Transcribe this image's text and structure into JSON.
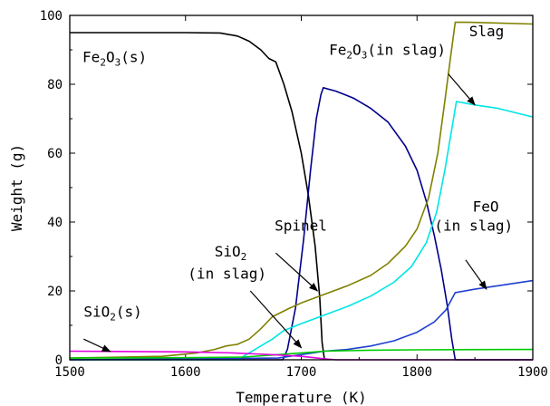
{
  "chart_data": {
    "type": "line",
    "title": "",
    "xlabel": "Temperature (K)",
    "ylabel": "Weight (g)",
    "xlim": [
      1500,
      1900
    ],
    "ylim": [
      0,
      100
    ],
    "xticks": [
      1500,
      1600,
      1700,
      1800,
      1900
    ],
    "yticks": [
      0,
      20,
      40,
      60,
      80,
      100
    ],
    "grid": false,
    "legend": "none",
    "series": [
      {
        "key": "fe2o3_s",
        "color": "#000000",
        "points": [
          [
            1500,
            95
          ],
          [
            1560,
            95
          ],
          [
            1600,
            95
          ],
          [
            1630,
            94.9
          ],
          [
            1645,
            94
          ],
          [
            1655,
            92.5
          ],
          [
            1665,
            90
          ],
          [
            1672,
            87.5
          ],
          [
            1678,
            86.5
          ],
          [
            1685,
            80
          ],
          [
            1692,
            72
          ],
          [
            1700,
            60
          ],
          [
            1706,
            48
          ],
          [
            1712,
            33
          ],
          [
            1716,
            18
          ],
          [
            1718,
            5
          ],
          [
            1720,
            0
          ]
        ]
      },
      {
        "key": "spinel",
        "color": "#00008b",
        "points": [
          [
            1500,
            0
          ],
          [
            1684,
            0
          ],
          [
            1688,
            3
          ],
          [
            1695,
            15
          ],
          [
            1702,
            35
          ],
          [
            1708,
            55
          ],
          [
            1713,
            70
          ],
          [
            1717,
            77
          ],
          [
            1719,
            79
          ],
          [
            1730,
            78
          ],
          [
            1745,
            76
          ],
          [
            1760,
            73
          ],
          [
            1775,
            69
          ],
          [
            1790,
            62
          ],
          [
            1800,
            55
          ],
          [
            1808,
            46
          ],
          [
            1815,
            36
          ],
          [
            1821,
            26
          ],
          [
            1826,
            16
          ],
          [
            1830,
            6
          ],
          [
            1833,
            0
          ],
          [
            1900,
            0
          ]
        ]
      },
      {
        "key": "slag",
        "color": "#808000",
        "points": [
          [
            1500,
            0.5
          ],
          [
            1580,
            1
          ],
          [
            1610,
            2
          ],
          [
            1625,
            3
          ],
          [
            1635,
            4
          ],
          [
            1645,
            4.5
          ],
          [
            1655,
            6
          ],
          [
            1665,
            9
          ],
          [
            1675,
            12.5
          ],
          [
            1690,
            15
          ],
          [
            1700,
            16.5
          ],
          [
            1720,
            19
          ],
          [
            1740,
            21.5
          ],
          [
            1760,
            24.5
          ],
          [
            1775,
            28
          ],
          [
            1790,
            33
          ],
          [
            1800,
            38
          ],
          [
            1810,
            47
          ],
          [
            1818,
            60
          ],
          [
            1824,
            75
          ],
          [
            1829,
            88
          ],
          [
            1833,
            98
          ],
          [
            1845,
            98
          ],
          [
            1900,
            97.5
          ]
        ]
      },
      {
        "key": "fe2o3_slag",
        "color": "#00e5e5",
        "points": [
          [
            1500,
            0
          ],
          [
            1645,
            0
          ],
          [
            1655,
            2
          ],
          [
            1665,
            4
          ],
          [
            1675,
            6
          ],
          [
            1685,
            8.5
          ],
          [
            1700,
            10.5
          ],
          [
            1720,
            13
          ],
          [
            1740,
            15.5
          ],
          [
            1760,
            18.5
          ],
          [
            1780,
            22.5
          ],
          [
            1795,
            27
          ],
          [
            1808,
            34
          ],
          [
            1817,
            43
          ],
          [
            1824,
            55
          ],
          [
            1830,
            67
          ],
          [
            1834,
            75
          ],
          [
            1850,
            74
          ],
          [
            1870,
            73
          ],
          [
            1900,
            70.5
          ]
        ]
      },
      {
        "key": "feo_slag",
        "color": "#1f3fd0",
        "points": [
          [
            1500,
            0
          ],
          [
            1680,
            0.5
          ],
          [
            1700,
            1.5
          ],
          [
            1720,
            2.5
          ],
          [
            1740,
            3
          ],
          [
            1760,
            4
          ],
          [
            1780,
            5.5
          ],
          [
            1800,
            8
          ],
          [
            1815,
            11
          ],
          [
            1825,
            14.5
          ],
          [
            1833,
            19.5
          ],
          [
            1850,
            20.5
          ],
          [
            1870,
            21.5
          ],
          [
            1900,
            23
          ]
        ]
      },
      {
        "key": "sio2_slag",
        "color": "#00cc00",
        "points": [
          [
            1500,
            0.5
          ],
          [
            1600,
            0.6
          ],
          [
            1650,
            0.8
          ],
          [
            1680,
            1.5
          ],
          [
            1700,
            2
          ],
          [
            1720,
            2.5
          ],
          [
            1760,
            2.8
          ],
          [
            1800,
            2.9
          ],
          [
            1900,
            3
          ]
        ]
      },
      {
        "key": "sio2_s",
        "color": "#e000e0",
        "points": [
          [
            1500,
            2.5
          ],
          [
            1600,
            2.3
          ],
          [
            1640,
            2
          ],
          [
            1660,
            1.7
          ],
          [
            1680,
            1.4
          ],
          [
            1700,
            1
          ],
          [
            1720,
            0.3
          ],
          [
            1730,
            0
          ],
          [
            1900,
            0
          ]
        ]
      }
    ],
    "annotations": [
      {
        "key": "a_fe2o3s",
        "main": "Fe",
        "sub": "2",
        "mid": "O",
        "sub2": "3",
        "tail": "(s)",
        "x": 1511,
        "y": 86.5
      },
      {
        "key": "a_slag",
        "main": "Slag",
        "x": 1845,
        "y": 94
      },
      {
        "key": "a_fe2o3slag",
        "main": "Fe",
        "sub": "2",
        "mid": "O",
        "sub2": "3",
        "tail": "(in slag)",
        "x": 1724,
        "y": 88.5
      },
      {
        "key": "a_feo1",
        "main": "FeO",
        "x": 1848,
        "y": 43
      },
      {
        "key": "a_feo2",
        "main": "(in slag)",
        "x": 1815,
        "y": 37.5
      },
      {
        "key": "a_spinel",
        "main": "Spinel",
        "x": 1677,
        "y": 37.5
      },
      {
        "key": "a_sio2slag1",
        "main": "SiO",
        "sub": "2",
        "x": 1625,
        "y": 30
      },
      {
        "key": "a_sio2slag2",
        "main": "(in slag)",
        "x": 1602,
        "y": 23.5
      },
      {
        "key": "a_sio2s",
        "main": "SiO",
        "sub": "2",
        "tail": "(s)",
        "x": 1512,
        "y": 12.5
      }
    ],
    "arrows": [
      {
        "key": "arr_spinel",
        "from": [
          1678,
          31
        ],
        "to": [
          1714,
          20
        ]
      },
      {
        "key": "arr_fe2o3slag",
        "from": [
          1827,
          83
        ],
        "to": [
          1850,
          74
        ]
      },
      {
        "key": "arr_feo",
        "from": [
          1842,
          29
        ],
        "to": [
          1860,
          20.5
        ]
      },
      {
        "key": "arr_sio2slag",
        "from": [
          1656,
          20
        ],
        "to": [
          1700,
          3.5
        ]
      },
      {
        "key": "arr_sio2s",
        "from": [
          1512,
          6
        ],
        "to": [
          1535,
          2.4
        ]
      }
    ]
  }
}
